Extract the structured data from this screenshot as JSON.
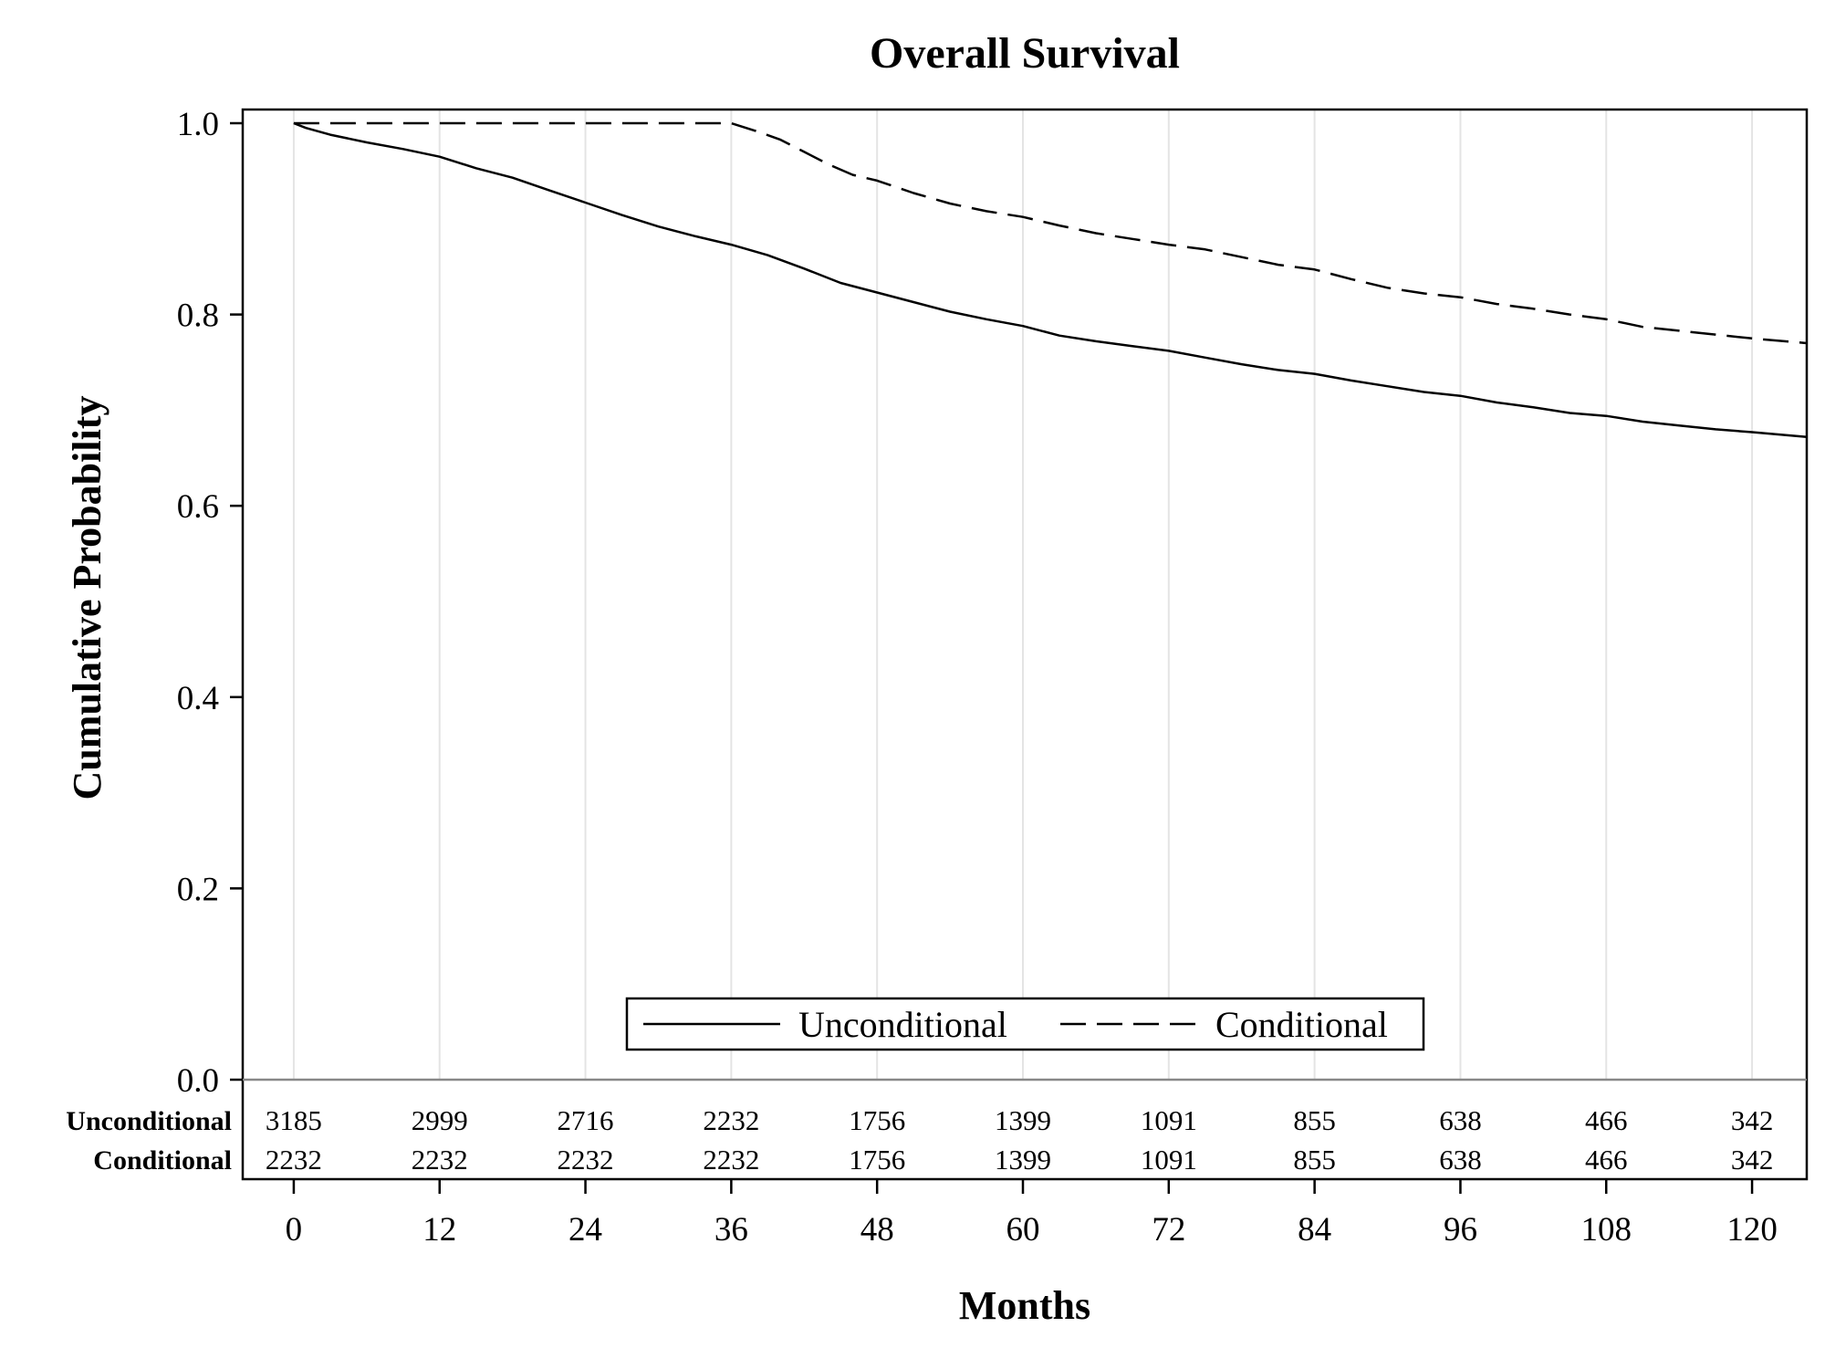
{
  "chart_data": {
    "type": "line",
    "title": "Overall Survival",
    "xlabel": "Months",
    "ylabel": "Cumulative Probability",
    "xlim": [
      -4.2,
      124.5
    ],
    "ylim": [
      0,
      1.0
    ],
    "x_ticks": [
      0,
      12,
      24,
      36,
      48,
      60,
      72,
      84,
      96,
      108,
      120
    ],
    "y_ticks": [
      0.0,
      0.2,
      0.4,
      0.6,
      0.8,
      1.0
    ],
    "y_tick_labels": [
      "0.0",
      "0.2",
      "0.4",
      "0.6",
      "0.8",
      "1.0"
    ],
    "grid": "vertical",
    "legend_position": "bottom-center inside plot",
    "series": [
      {
        "name": "Unconditional",
        "line_style": "solid",
        "color": "#000000",
        "x": [
          0,
          1,
          3,
          6,
          9,
          12,
          15,
          18,
          21,
          24,
          27,
          30,
          33,
          36,
          39,
          42,
          45,
          48,
          51,
          54,
          57,
          60,
          63,
          66,
          69,
          72,
          75,
          78,
          81,
          84,
          87,
          90,
          93,
          96,
          99,
          102,
          105,
          108,
          111,
          114,
          117,
          120,
          124.5
        ],
        "y": [
          1.0,
          0.995,
          0.988,
          0.98,
          0.973,
          0.965,
          0.953,
          0.943,
          0.93,
          0.917,
          0.904,
          0.892,
          0.882,
          0.873,
          0.862,
          0.848,
          0.833,
          0.823,
          0.813,
          0.803,
          0.795,
          0.788,
          0.778,
          0.772,
          0.767,
          0.762,
          0.755,
          0.748,
          0.742,
          0.738,
          0.731,
          0.725,
          0.719,
          0.715,
          0.708,
          0.703,
          0.697,
          0.694,
          0.688,
          0.684,
          0.68,
          0.677,
          0.672
        ]
      },
      {
        "name": "Conditional",
        "line_style": "dashed",
        "color": "#000000",
        "x": [
          0,
          36,
          38,
          40,
          42,
          44,
          46,
          48,
          51,
          54,
          57,
          60,
          63,
          66,
          69,
          72,
          75,
          78,
          81,
          84,
          87,
          90,
          93,
          96,
          99,
          102,
          105,
          108,
          111,
          114,
          117,
          120,
          124.5
        ],
        "y": [
          1.0,
          1.0,
          0.992,
          0.983,
          0.97,
          0.957,
          0.946,
          0.94,
          0.927,
          0.916,
          0.908,
          0.902,
          0.893,
          0.885,
          0.879,
          0.873,
          0.868,
          0.86,
          0.852,
          0.847,
          0.837,
          0.828,
          0.822,
          0.818,
          0.811,
          0.806,
          0.8,
          0.795,
          0.787,
          0.783,
          0.779,
          0.775,
          0.77
        ]
      }
    ],
    "risk_table": {
      "rows": [
        {
          "label": "Unconditional",
          "values": [
            "3185",
            "2999",
            "2716",
            "2232",
            "1756",
            "1399",
            "1091",
            "855",
            "638",
            "466",
            "342"
          ]
        },
        {
          "label": "Conditional",
          "values": [
            "2232",
            "2232",
            "2232",
            "2232",
            "1756",
            "1399",
            "1091",
            "855",
            "638",
            "466",
            "342"
          ]
        }
      ]
    }
  }
}
